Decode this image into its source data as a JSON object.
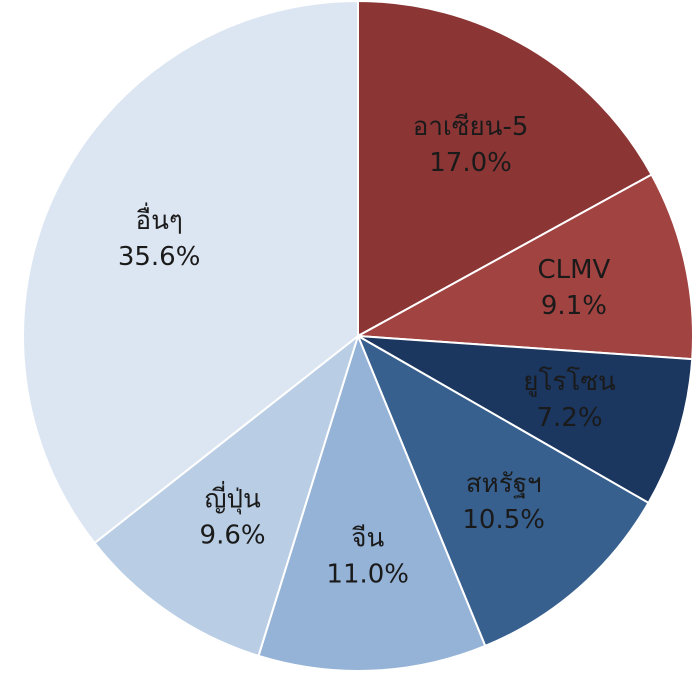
{
  "chart_data": {
    "type": "pie",
    "categories": [
      "อาเซียน-5",
      "CLMV",
      "ยูโรโซน",
      "สหรัฐฯ",
      "จีน",
      "ญี่ปุ่น",
      "อื่นๆ"
    ],
    "values": [
      17.0,
      9.1,
      7.2,
      10.5,
      11.0,
      9.6,
      35.6
    ],
    "value_labels": [
      "17.0%",
      "9.1%",
      "7.2%",
      "10.5%",
      "11.0%",
      "9.6%",
      "35.6%"
    ],
    "colors": [
      "#8b3535",
      "#a14341",
      "#1b365f",
      "#37608f",
      "#95b3d7",
      "#b9cde5",
      "#dce6f2"
    ]
  }
}
